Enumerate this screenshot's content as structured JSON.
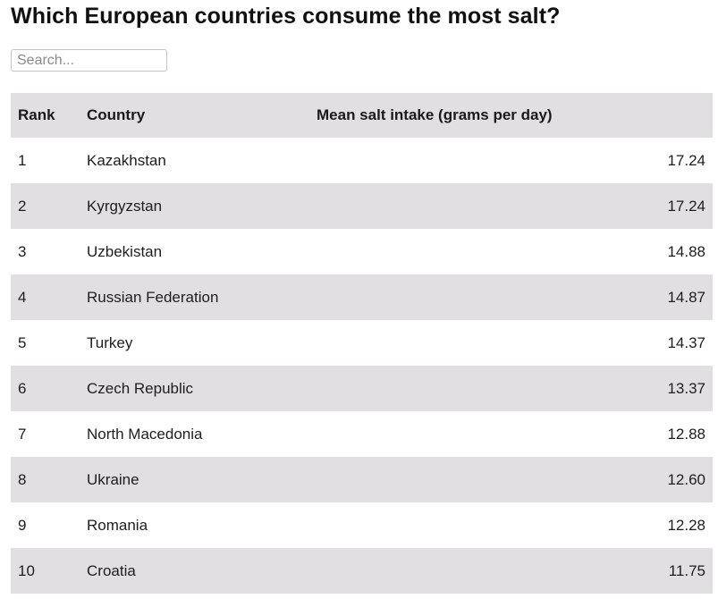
{
  "page": {
    "title": "Which European countries consume the most salt?"
  },
  "search": {
    "placeholder": "Search...",
    "value": ""
  },
  "table": {
    "columns": {
      "rank": "Rank",
      "country": "Country",
      "salt": "Mean salt intake (grams per day)"
    },
    "rows": [
      {
        "rank": "1",
        "country": "Kazakhstan",
        "salt": "17.24"
      },
      {
        "rank": "2",
        "country": "Kyrgyzstan",
        "salt": "17.24"
      },
      {
        "rank": "3",
        "country": "Uzbekistan",
        "salt": "14.88"
      },
      {
        "rank": "4",
        "country": "Russian Federation",
        "salt": "14.87"
      },
      {
        "rank": "5",
        "country": "Turkey",
        "salt": "14.37"
      },
      {
        "rank": "6",
        "country": "Czech Republic",
        "salt": "13.37"
      },
      {
        "rank": "7",
        "country": "North Macedonia",
        "salt": "12.88"
      },
      {
        "rank": "8",
        "country": "Ukraine",
        "salt": "12.60"
      },
      {
        "rank": "9",
        "country": "Romania",
        "salt": "12.28"
      },
      {
        "rank": "10",
        "country": "Croatia",
        "salt": "11.75"
      }
    ]
  },
  "colors": {
    "header_bg": "#e1dfe1",
    "stripe_bg": "#e1dfe1",
    "row_bg": "#ffffff",
    "text": "#1e1e1e"
  }
}
